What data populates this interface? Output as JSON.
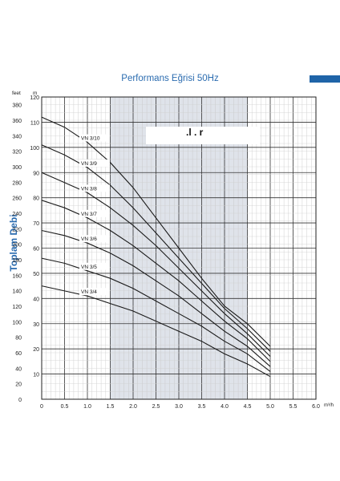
{
  "header": {
    "accent_color": "#1f64a8"
  },
  "obscured_label": {
    "visible_fragment": ".l . r"
  },
  "chart_data": {
    "type": "line",
    "title": "Performans Eğrisi 50Hz",
    "ylabel": "Toplam Debi",
    "left_axis_unit": "feet",
    "right_axis_unit": "m",
    "x_unit": "m³/h",
    "xlim": [
      0,
      6
    ],
    "ylim_m": [
      0,
      120
    ],
    "ylim_feet": [
      0,
      390
    ],
    "x_ticks": [
      "0",
      "0.5",
      "1.0",
      "1.5",
      "2.0",
      "2.5",
      "3.0",
      "3.5",
      "4.0",
      "4.5",
      "5.0",
      "5.5",
      "6.0"
    ],
    "feet_ticks": [
      "0",
      "20",
      "40",
      "60",
      "80",
      "100",
      "120",
      "140",
      "160",
      "180",
      "200",
      "220",
      "240",
      "260",
      "280",
      "300",
      "320",
      "340",
      "360",
      "380"
    ],
    "m_ticks": [
      "10",
      "20",
      "30",
      "40",
      "50",
      "60",
      "70",
      "80",
      "90",
      "100",
      "110",
      "120"
    ],
    "shaded_range_x": [
      1.5,
      4.5
    ],
    "grid": true,
    "series": [
      {
        "name": "VN 3/10",
        "x": [
          0,
          0.5,
          1.0,
          1.5,
          2.0,
          2.5,
          3.0,
          3.5,
          4.0,
          4.5,
          5.0
        ],
        "y": [
          112,
          108,
          102,
          94,
          84,
          72,
          60,
          48,
          37,
          30,
          21
        ]
      },
      {
        "name": "VN 3/9",
        "x": [
          0,
          0.5,
          1.0,
          1.5,
          2.0,
          2.5,
          3.0,
          3.5,
          4.0,
          4.5,
          5.0
        ],
        "y": [
          101,
          97,
          92,
          85,
          76,
          66,
          56,
          46,
          36,
          28,
          19
        ]
      },
      {
        "name": "VN 3/8",
        "x": [
          0,
          0.5,
          1.0,
          1.5,
          2.0,
          2.5,
          3.0,
          3.5,
          4.0,
          4.5,
          5.0
        ],
        "y": [
          90,
          86,
          82,
          76,
          69,
          61,
          52,
          43,
          34,
          26,
          17
        ]
      },
      {
        "name": "VN 3/7",
        "x": [
          0,
          0.5,
          1.0,
          1.5,
          2.0,
          2.5,
          3.0,
          3.5,
          4.0,
          4.5,
          5.0
        ],
        "y": [
          79,
          76,
          72,
          67,
          61,
          54,
          47,
          39,
          31,
          24,
          15
        ]
      },
      {
        "name": "VN 3/6",
        "x": [
          0,
          0.5,
          1.0,
          1.5,
          2.0,
          2.5,
          3.0,
          3.5,
          4.0,
          4.5,
          5.0
        ],
        "y": [
          67,
          65,
          62,
          58,
          53,
          47,
          41,
          34,
          27,
          21,
          13
        ]
      },
      {
        "name": "VN 3/5",
        "x": [
          0,
          0.5,
          1.0,
          1.5,
          2.0,
          2.5,
          3.0,
          3.5,
          4.0,
          4.5,
          5.0
        ],
        "y": [
          56,
          54,
          51,
          48,
          44,
          39,
          34,
          29,
          23,
          18,
          11
        ]
      },
      {
        "name": "VN 3/4",
        "x": [
          0,
          0.5,
          1.0,
          1.5,
          2.0,
          2.5,
          3.0,
          3.5,
          4.0,
          4.5,
          5.0
        ],
        "y": [
          45,
          43,
          41,
          38,
          35,
          31,
          27,
          23,
          18,
          14,
          9
        ]
      }
    ]
  }
}
